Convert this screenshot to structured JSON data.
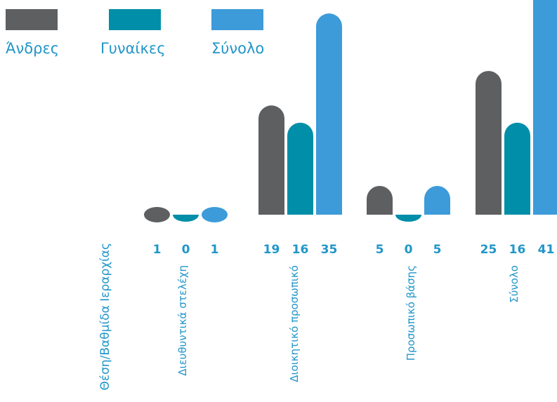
{
  "chart_data": {
    "type": "bar",
    "header_label": "Θέση/Βαθμίδα Ιεραρχίας",
    "categories": [
      "Διευθυντικά στελέχη",
      "Διοικητικό προσωπικό",
      "Προσωπικό βάσης",
      "Σύνολο"
    ],
    "series": [
      {
        "name": "Άνδρες",
        "color": "#5e5f61",
        "values": [
          1,
          19,
          5,
          25
        ]
      },
      {
        "name": "Γυναίκες",
        "color": "#008ea8",
        "values": [
          0,
          16,
          0,
          16
        ]
      },
      {
        "name": "Σύνολο",
        "color": "#3d9bd9",
        "values": [
          1,
          35,
          5,
          41
        ]
      }
    ],
    "ylim": [
      0,
      41
    ],
    "grid": false,
    "legend": "top-left"
  }
}
